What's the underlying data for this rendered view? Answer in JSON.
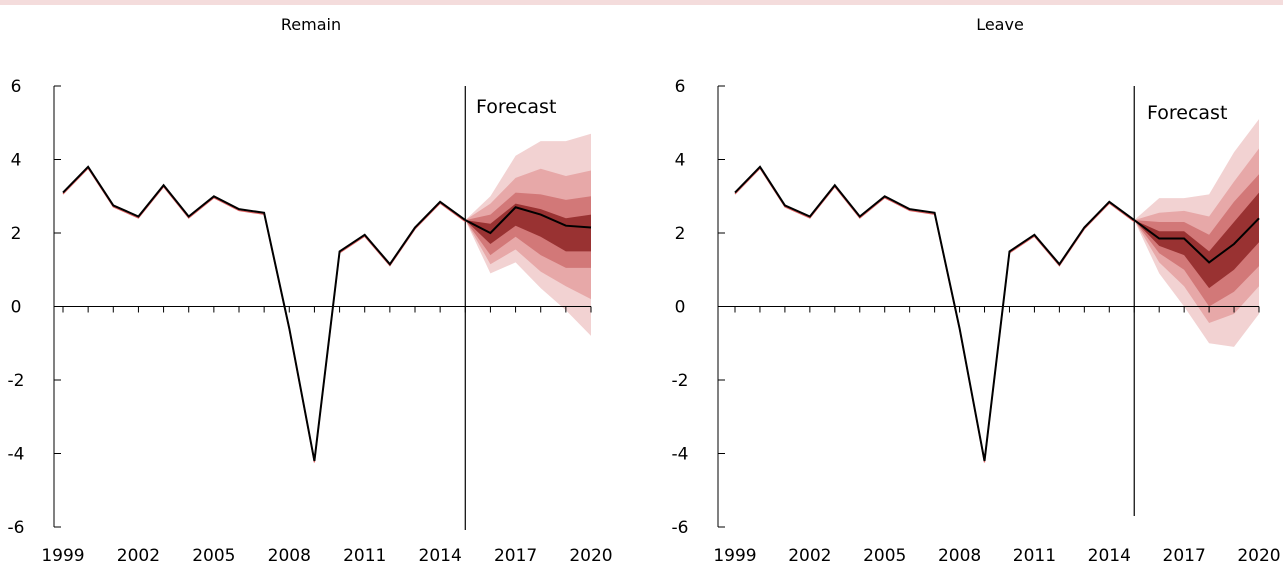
{
  "chart_data": [
    {
      "type": "line",
      "title": "Remain",
      "annotation": "Forecast",
      "forecast_start": 2015,
      "xlim": [
        1999,
        2020
      ],
      "x_tick_labels": [
        "1999",
        "2002",
        "2005",
        "2008",
        "2011",
        "2014",
        "2017",
        "2020"
      ],
      "ylim": [
        -6,
        6
      ],
      "y_tick_labels": [
        "6",
        "4",
        "2",
        "0",
        "-2",
        "-4",
        "-6"
      ],
      "history": {
        "x": [
          1999,
          2000,
          2001,
          2002,
          2003,
          2004,
          2005,
          2006,
          2007,
          2008,
          2009,
          2010,
          2011,
          2012,
          2013,
          2014,
          2015
        ],
        "y": [
          3.1,
          3.8,
          2.75,
          2.45,
          3.3,
          2.45,
          3.0,
          2.65,
          2.55,
          -0.6,
          -4.2,
          1.5,
          1.95,
          1.15,
          2.15,
          2.85,
          2.35
        ]
      },
      "forecast": {
        "x": [
          2015,
          2016,
          2017,
          2018,
          2019,
          2020
        ],
        "central": [
          2.35,
          2.0,
          2.7,
          2.5,
          2.2,
          2.15
        ],
        "fan_bands": [
          {
            "lower": [
              2.35,
              0.9,
              1.2,
              0.5,
              -0.1,
              -0.8
            ],
            "upper": [
              2.35,
              3.0,
              4.1,
              4.5,
              4.5,
              4.7
            ]
          },
          {
            "lower": [
              2.35,
              1.15,
              1.55,
              0.95,
              0.55,
              0.2
            ],
            "upper": [
              2.35,
              2.8,
              3.5,
              3.75,
              3.55,
              3.7
            ]
          },
          {
            "lower": [
              2.35,
              1.4,
              1.9,
              1.4,
              1.05,
              1.05
            ],
            "upper": [
              2.35,
              2.5,
              3.1,
              3.05,
              2.9,
              3.0
            ]
          },
          {
            "lower": [
              2.35,
              1.7,
              2.2,
              1.9,
              1.5,
              1.5
            ],
            "upper": [
              2.35,
              2.25,
              2.8,
              2.65,
              2.4,
              2.5
            ]
          }
        ]
      },
      "colors": {
        "line": "#000000",
        "fan": [
          "#f2d2d2",
          "#e7a8a8",
          "#d27878",
          "#993232"
        ]
      }
    },
    {
      "type": "line",
      "title": "Leave",
      "annotation": "Forecast",
      "forecast_start": 2015,
      "xlim": [
        1999,
        2020
      ],
      "x_tick_labels": [
        "1999",
        "2002",
        "2005",
        "2008",
        "2011",
        "2014",
        "2017",
        "2020"
      ],
      "ylim": [
        -6,
        6
      ],
      "y_tick_labels": [
        "6",
        "4",
        "2",
        "0",
        "-2",
        "-4",
        "-6"
      ],
      "history": {
        "x": [
          1999,
          2000,
          2001,
          2002,
          2003,
          2004,
          2005,
          2006,
          2007,
          2008,
          2009,
          2010,
          2011,
          2012,
          2013,
          2014,
          2015
        ],
        "y": [
          3.1,
          3.8,
          2.75,
          2.45,
          3.3,
          2.45,
          3.0,
          2.65,
          2.55,
          -0.6,
          -4.2,
          1.5,
          1.95,
          1.15,
          2.15,
          2.85,
          2.35
        ]
      },
      "forecast": {
        "x": [
          2015,
          2016,
          2017,
          2018,
          2019,
          2020
        ],
        "central": [
          2.35,
          1.85,
          1.85,
          1.2,
          1.7,
          2.4
        ],
        "fan_bands": [
          {
            "lower": [
              2.35,
              0.9,
              0.0,
              -1.0,
              -1.1,
              -0.2
            ],
            "upper": [
              2.35,
              2.95,
              2.95,
              3.05,
              4.2,
              5.1
            ]
          },
          {
            "lower": [
              2.35,
              1.2,
              0.55,
              -0.45,
              -0.2,
              0.55
            ],
            "upper": [
              2.35,
              2.55,
              2.6,
              2.45,
              3.4,
              4.3
            ]
          },
          {
            "lower": [
              2.35,
              1.45,
              1.0,
              0.0,
              0.4,
              1.1
            ],
            "upper": [
              2.35,
              2.3,
              2.3,
              1.95,
              2.85,
              3.6
            ]
          },
          {
            "lower": [
              2.35,
              1.65,
              1.4,
              0.5,
              1.0,
              1.75
            ],
            "upper": [
              2.35,
              2.05,
              2.05,
              1.5,
              2.3,
              3.1
            ]
          }
        ]
      },
      "colors": {
        "line": "#000000",
        "fan": [
          "#f2d2d2",
          "#e7a8a8",
          "#d27878",
          "#993232"
        ]
      }
    }
  ]
}
